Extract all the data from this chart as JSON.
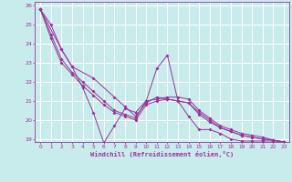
{
  "xlabel": "Windchill (Refroidissement éolien,°C)",
  "ylabel": "",
  "bg_color": "#c8ecec",
  "line_color": "#993399",
  "grid_color": "#ffffff",
  "xlim": [
    -0.5,
    23.5
  ],
  "ylim": [
    18.85,
    26.2
  ],
  "xticks": [
    0,
    1,
    2,
    3,
    4,
    5,
    6,
    7,
    8,
    9,
    10,
    11,
    12,
    13,
    14,
    15,
    16,
    17,
    18,
    19,
    20,
    21,
    22,
    23
  ],
  "yticks": [
    19,
    20,
    21,
    22,
    23,
    24,
    25,
    26
  ],
  "series": [
    {
      "x": [
        0,
        1,
        2,
        3,
        4,
        5,
        6,
        7,
        8,
        9,
        10,
        11,
        12,
        13,
        14,
        15,
        16,
        17,
        18,
        19,
        20,
        21,
        22,
        23
      ],
      "y": [
        25.8,
        25.0,
        23.7,
        22.8,
        21.7,
        20.4,
        18.8,
        19.7,
        20.6,
        20.4,
        21.0,
        22.7,
        23.4,
        21.0,
        20.2,
        19.5,
        19.5,
        19.3,
        19.0,
        18.9,
        18.9,
        18.9,
        18.9,
        18.85
      ]
    },
    {
      "x": [
        0,
        1,
        2,
        3,
        4,
        5,
        6,
        7,
        8,
        9,
        10,
        11,
        12,
        13,
        14,
        15,
        16,
        17,
        18,
        19,
        20,
        21,
        22,
        23
      ],
      "y": [
        25.8,
        24.5,
        23.2,
        22.5,
        22.0,
        21.5,
        21.0,
        20.5,
        20.3,
        20.1,
        21.0,
        21.1,
        21.2,
        21.2,
        21.1,
        20.5,
        20.1,
        19.7,
        19.5,
        19.3,
        19.2,
        19.1,
        18.95,
        18.85
      ]
    },
    {
      "x": [
        0,
        1,
        2,
        3,
        4,
        5,
        6,
        7,
        8,
        9,
        10,
        11,
        12,
        13,
        14,
        15,
        16,
        17,
        18,
        19,
        20,
        21,
        22,
        23
      ],
      "y": [
        25.8,
        24.3,
        23.0,
        22.4,
        21.8,
        21.3,
        20.8,
        20.4,
        20.2,
        20.0,
        20.8,
        21.0,
        21.1,
        21.0,
        20.9,
        20.3,
        19.9,
        19.6,
        19.4,
        19.2,
        19.1,
        19.0,
        18.95,
        18.85
      ]
    },
    {
      "x": [
        0,
        2,
        3,
        5,
        7,
        8,
        9,
        10,
        11,
        12,
        13,
        14,
        15,
        16,
        17,
        18,
        19,
        20,
        21,
        22,
        23
      ],
      "y": [
        25.8,
        23.7,
        22.8,
        22.2,
        21.2,
        20.7,
        20.2,
        20.9,
        21.2,
        21.1,
        21.0,
        20.9,
        20.4,
        20.0,
        19.6,
        19.4,
        19.2,
        19.1,
        19.0,
        18.95,
        18.85
      ]
    }
  ]
}
